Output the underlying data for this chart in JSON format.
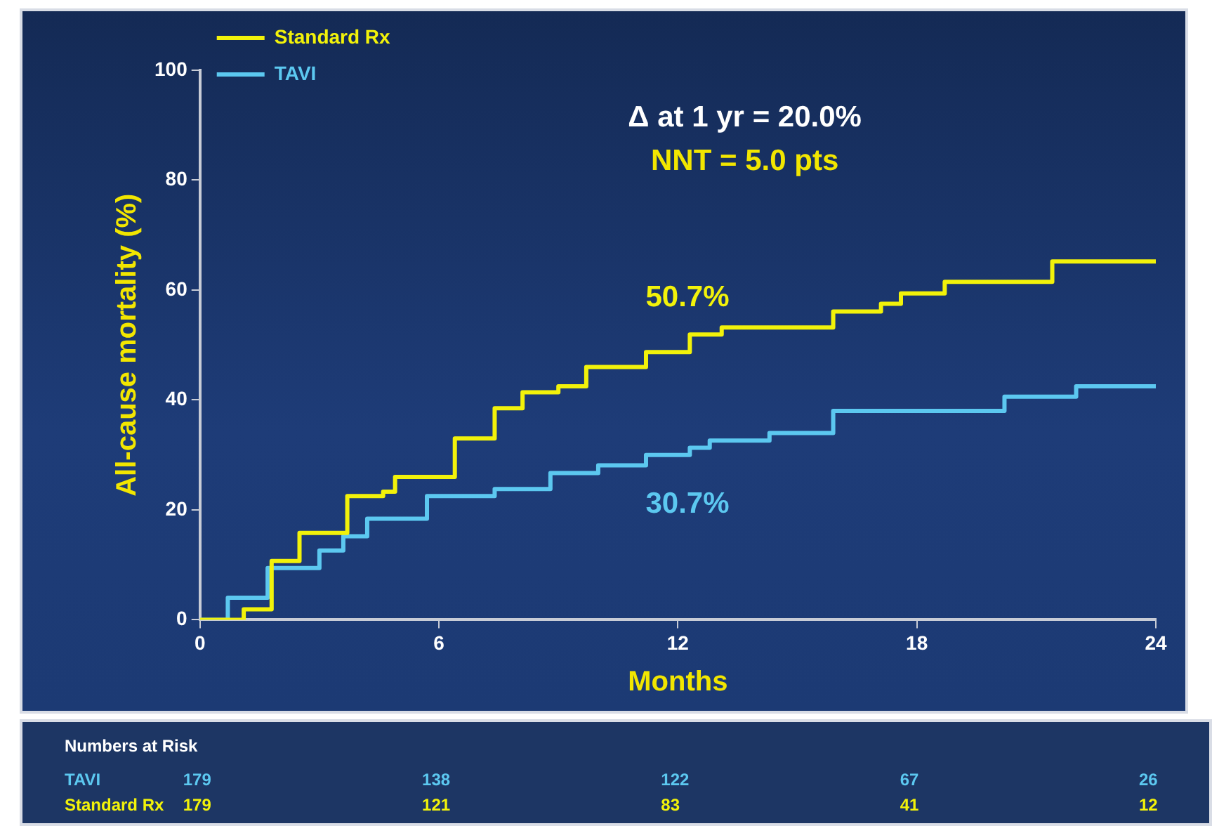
{
  "chart_data": [
    {
      "type": "step",
      "xlabel": "Months",
      "ylabel": "All-cause mortality (%)",
      "xlim": [
        0,
        24
      ],
      "xticks": [
        0,
        6,
        12,
        18,
        24
      ],
      "ylim": [
        0,
        100
      ],
      "yticks": [
        0,
        20,
        40,
        60,
        80,
        100
      ],
      "grid": false,
      "legend": "top left",
      "marker": "none",
      "annotations": [
        "Δ at 1 yr = 20.0%",
        "NNT = 5.0 pts",
        "50.7%",
        "30.7%"
      ],
      "series": [
        {
          "name": "Standard Rx",
          "color": "#f2f20a",
          "x": [
            0,
            1.1,
            1.8,
            2.5,
            3.7,
            4.6,
            4.9,
            6.4,
            7.4,
            8.1,
            9.0,
            9.7,
            11.2,
            12.3,
            13.1,
            14.7,
            15.9,
            17.1,
            17.6,
            18.7,
            21.2,
            21.4,
            24
          ],
          "values": [
            0,
            1.9,
            10.7,
            15.8,
            22.5,
            23.3,
            26,
            33,
            38.5,
            41.4,
            42.5,
            46,
            48.7,
            51.9,
            53.2,
            53.2,
            56.1,
            57.5,
            59.4,
            61.5,
            61.5,
            65.2,
            65.2
          ]
        },
        {
          "name": "TAVI",
          "color": "#5cc8f0",
          "x": [
            0,
            0.7,
            1.7,
            3.0,
            3.6,
            4.2,
            5.7,
            7.4,
            8.8,
            10.0,
            11.2,
            12.3,
            12.8,
            14.3,
            15.9,
            18.5,
            20.2,
            21.9,
            22.0,
            24
          ],
          "values": [
            0,
            4,
            9.4,
            12.6,
            15.2,
            18.4,
            22.5,
            23.8,
            26.7,
            28.1,
            30,
            31.3,
            32.6,
            34,
            38,
            38,
            40.6,
            40.6,
            42.5,
            42.5
          ]
        }
      ]
    },
    {
      "type": "other",
      "title": "Numbers at Risk",
      "annotations": [
        "TAVI",
        "179",
        "138",
        "122",
        "67",
        "26",
        "Standard Rx",
        "179",
        "121",
        "83",
        "41",
        "12"
      ]
    }
  ]
}
